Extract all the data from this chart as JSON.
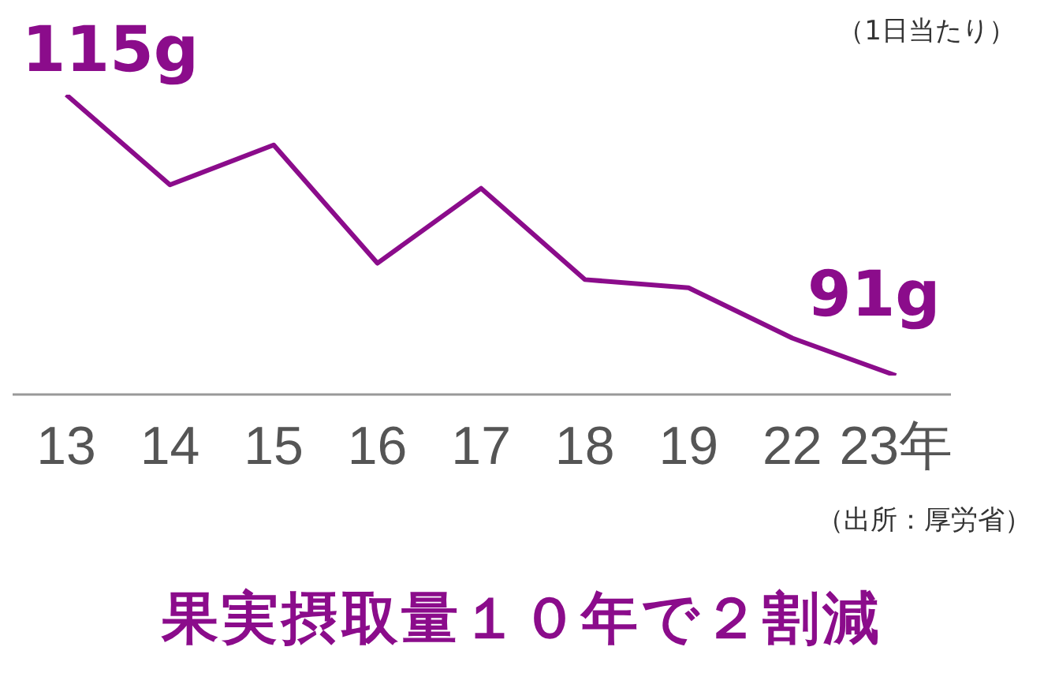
{
  "chart_data": {
    "type": "line",
    "title": "果実摂取量１０年で２割減",
    "annotations": [
      "（1日当たり）",
      "（出所：厚労省）"
    ],
    "categories": [
      "13",
      "14",
      "15",
      "16",
      "17",
      "18",
      "19",
      "22",
      "23年"
    ],
    "series": [
      {
        "color": "#8b0c8b",
        "values": [
          115,
          107.3,
          110.7,
          100.6,
          107.0,
          99.2,
          98.5,
          94.2,
          91
        ],
        "value_labels": [
          "115g",
          null,
          null,
          null,
          null,
          null,
          null,
          null,
          "91g"
        ]
      }
    ],
    "tick_labels": "x",
    "marker": "none",
    "line_style": "solid"
  }
}
